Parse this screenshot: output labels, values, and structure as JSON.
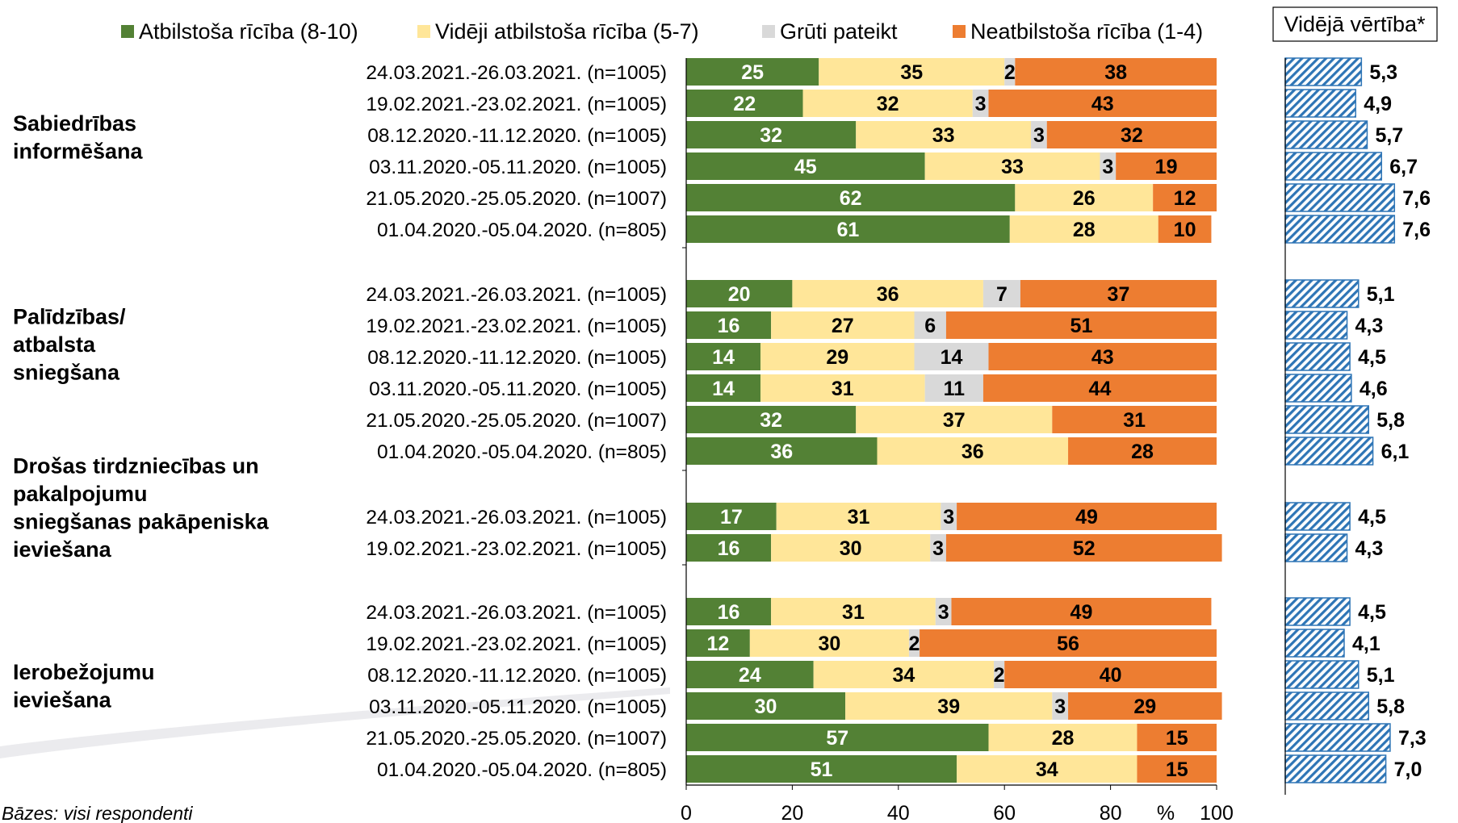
{
  "chart_data": {
    "type": "bar",
    "orientation": "horizontal",
    "stacked": true,
    "xlim": [
      0,
      100
    ],
    "x_ticks": [
      "0",
      "20",
      "40",
      "60",
      "80",
      "100"
    ],
    "x_unit": "%",
    "colors": {
      "Atbilstoša rīcība (8-10)": "#538135",
      "Vidēji atbilstoša rīcība (5-7)": "#FFE699",
      "Grūti pateikt": "#D9D9D9",
      "Neatbilstoša rīcība (1-4)": "#ED7D31",
      "average": "#2E75B6"
    },
    "legend": [
      "Atbilstoša rīcība (8-10)",
      "Vidēji atbilstoša rīcība (5-7)",
      "Grūti pateikt",
      "Neatbilstoša rīcība (1-4)"
    ],
    "average_title": "Vidējā vērtība*",
    "average_xlim": [
      0,
      10
    ],
    "base_note": "Bāzes: visi respondenti",
    "groups": [
      {
        "label_lines": [
          "Sabiedrības",
          "informēšana"
        ],
        "rows": [
          {
            "label": "24.03.2021.-26.03.2021. (n=1005)",
            "values": [
              25,
              35,
              2,
              38
            ],
            "average": "5,3",
            "average_value": 5.3
          },
          {
            "label": "19.02.2021.-23.02.2021. (n=1005)",
            "values": [
              22,
              32,
              3,
              43
            ],
            "average": "4,9",
            "average_value": 4.9
          },
          {
            "label": "08.12.2020.-11.12.2020. (n=1005)",
            "values": [
              32,
              33,
              3,
              32
            ],
            "average": "5,7",
            "average_value": 5.7
          },
          {
            "label": "03.11.2020.-05.11.2020. (n=1005)",
            "values": [
              45,
              33,
              3,
              19
            ],
            "average": "6,7",
            "average_value": 6.7
          },
          {
            "label": "21.05.2020.-25.05.2020. (n=1007)",
            "values": [
              62,
              26,
              0,
              12
            ],
            "average": "7,6",
            "average_value": 7.6
          },
          {
            "label": "01.04.2020.-05.04.2020. (n=805)",
            "values": [
              61,
              28,
              0,
              10
            ],
            "average": "7,6",
            "average_value": 7.6
          }
        ]
      },
      {
        "label_lines": [
          "Palīdzības/",
          "atbalsta",
          "sniegšana"
        ],
        "rows": [
          {
            "label": "24.03.2021.-26.03.2021. (n=1005)",
            "values": [
              20,
              36,
              7,
              37
            ],
            "average": "5,1",
            "average_value": 5.1
          },
          {
            "label": "19.02.2021.-23.02.2021. (n=1005)",
            "values": [
              16,
              27,
              6,
              51
            ],
            "average": "4,3",
            "average_value": 4.3
          },
          {
            "label": "08.12.2020.-11.12.2020. (n=1005)",
            "values": [
              14,
              29,
              14,
              43
            ],
            "average": "4,5",
            "average_value": 4.5
          },
          {
            "label": "03.11.2020.-05.11.2020. (n=1005)",
            "values": [
              14,
              31,
              11,
              44
            ],
            "average": "4,6",
            "average_value": 4.6
          },
          {
            "label": "21.05.2020.-25.05.2020. (n=1007)",
            "values": [
              32,
              37,
              0,
              31
            ],
            "average": "5,8",
            "average_value": 5.8
          },
          {
            "label": "01.04.2020.-05.04.2020. (n=805)",
            "values": [
              36,
              36,
              0,
              28
            ],
            "average": "6,1",
            "average_value": 6.1
          }
        ]
      },
      {
        "label_lines": [
          "Drošas tirdzniecības un",
          "pakalpojumu",
          "sniegšanas pakāpeniska",
          "ieviešana"
        ],
        "rows": [
          {
            "label": "24.03.2021.-26.03.2021. (n=1005)",
            "values": [
              17,
              31,
              3,
              49
            ],
            "average": "4,5",
            "average_value": 4.5
          },
          {
            "label": "19.02.2021.-23.02.2021. (n=1005)",
            "values": [
              16,
              30,
              3,
              52
            ],
            "average": "4,3",
            "average_value": 4.3
          }
        ]
      },
      {
        "label_lines": [
          "Ierobežojumu",
          "ieviešana"
        ],
        "rows": [
          {
            "label": "24.03.2021.-26.03.2021. (n=1005)",
            "values": [
              16,
              31,
              3,
              49
            ],
            "average": "4,5",
            "average_value": 4.5
          },
          {
            "label": "19.02.2021.-23.02.2021. (n=1005)",
            "values": [
              12,
              30,
              2,
              56
            ],
            "average": "4,1",
            "average_value": 4.1
          },
          {
            "label": "08.12.2020.-11.12.2020. (n=1005)",
            "values": [
              24,
              34,
              2,
              40
            ],
            "average": "5,1",
            "average_value": 5.1
          },
          {
            "label": "03.11.2020.-05.11.2020. (n=1005)",
            "values": [
              30,
              39,
              3,
              29
            ],
            "average": "5,8",
            "average_value": 5.8
          },
          {
            "label": "21.05.2020.-25.05.2020. (n=1007)",
            "values": [
              57,
              28,
              0,
              15
            ],
            "average": "7,3",
            "average_value": 7.3
          },
          {
            "label": "01.04.2020.-05.04.2020. (n=805)",
            "values": [
              51,
              34,
              0,
              15
            ],
            "average": "7,0",
            "average_value": 7.0
          }
        ]
      }
    ]
  }
}
